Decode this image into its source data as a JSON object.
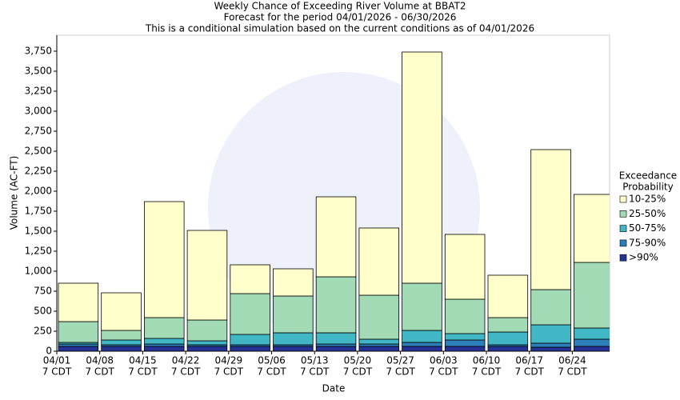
{
  "chart_data": {
    "type": "stacked_bar",
    "title": "Weekly Chance of Exceeding River Volume at BBAT2",
    "subtitle": [
      "Forecast for the period 04/01/2026 - 06/30/2026",
      "This is a conditional simulation based on the current conditions as of 04/01/2026"
    ],
    "x_label": "Date",
    "y_label": "Volume (AC-FT)",
    "legend_title": [
      "Exceedance",
      "Probability"
    ],
    "categories": [
      "04/01",
      "04/08",
      "04/15",
      "04/22",
      "04/29",
      "05/06",
      "05/13",
      "05/20",
      "05/27",
      "06/03",
      "06/10",
      "06/17",
      "06/24"
    ],
    "category_sublabels": [
      "7 CDT",
      "7 CDT",
      "7 CDT",
      "7 CDT",
      "7 CDT",
      "7 CDT",
      "7 CDT",
      "7 CDT",
      "7 CDT",
      "7 CDT",
      "7 CDT",
      "7 CDT",
      "7 CDT"
    ],
    "series": [
      {
        "name": ">90%",
        "color": "#253494",
        "values": [
          60,
          60,
          60,
          60,
          60,
          60,
          60,
          60,
          60,
          60,
          60,
          50,
          60
        ]
      },
      {
        "name": "75-90%",
        "color": "#2c7fb8",
        "values": [
          30,
          20,
          30,
          20,
          20,
          20,
          30,
          30,
          50,
          80,
          20,
          50,
          90
        ]
      },
      {
        "name": "50-75%",
        "color": "#41b6c4",
        "values": [
          20,
          60,
          70,
          50,
          130,
          150,
          140,
          60,
          150,
          80,
          160,
          230,
          140
        ]
      },
      {
        "name": "25-50%",
        "color": "#a1dab4",
        "values": [
          260,
          120,
          260,
          260,
          510,
          460,
          700,
          550,
          590,
          430,
          180,
          440,
          820
        ]
      },
      {
        "name": "10-25%",
        "color": "#ffffcc",
        "values": [
          480,
          470,
          1450,
          1120,
          360,
          340,
          1000,
          840,
          2890,
          810,
          530,
          1750,
          850
        ]
      }
    ],
    "ylim": [
      0,
      3950
    ],
    "yticks": [
      0,
      250,
      500,
      750,
      {
        "value": 1000,
        "label": "1,000"
      },
      {
        "value": 1250,
        "label": "1,250"
      },
      {
        "value": 1500,
        "label": "1,500"
      },
      {
        "value": 1750,
        "label": "1,750"
      },
      {
        "value": 2000,
        "label": "2,000"
      },
      {
        "value": 2250,
        "label": "2,250"
      },
      {
        "value": 2500,
        "label": "2,500"
      },
      {
        "value": 2750,
        "label": "2,750"
      },
      {
        "value": 3000,
        "label": "3,000"
      },
      {
        "value": 3250,
        "label": "3,250"
      },
      {
        "value": 3500,
        "label": "3,500"
      },
      {
        "value": 3750,
        "label": "3,750"
      }
    ]
  }
}
